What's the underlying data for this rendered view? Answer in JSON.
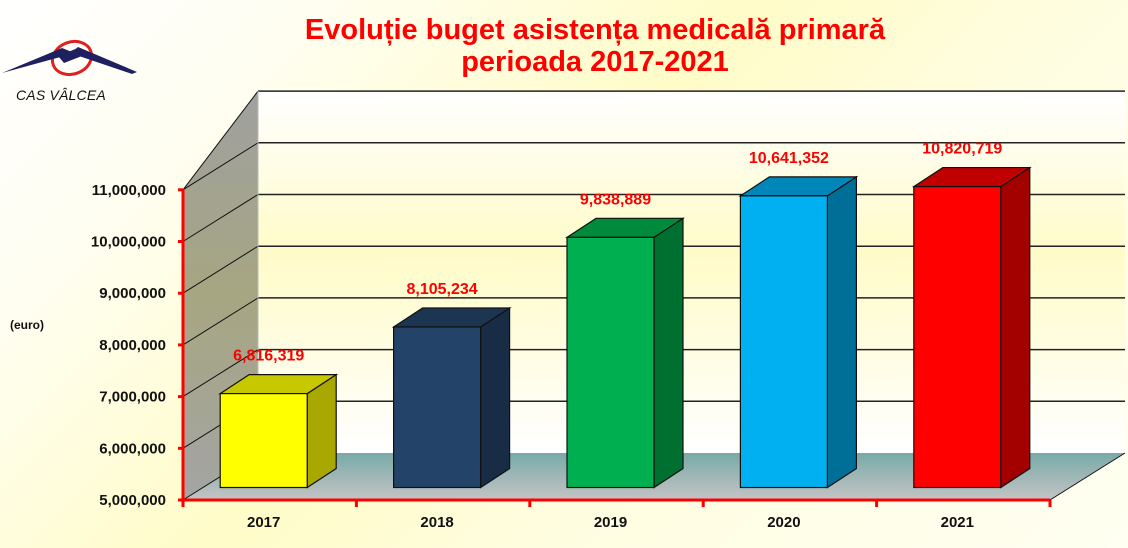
{
  "logo": {
    "icon": "cas-roof-swoosh-icon",
    "text": "CAS VÂLCEA"
  },
  "header": {
    "title_line1": "Evoluție buget asistența medicală primară",
    "title_line2": "perioada 2017-2021"
  },
  "chart_data": {
    "type": "bar",
    "style": "3d-column",
    "title": "Evoluție buget asistența medicală primară perioada 2017-2021",
    "xlabel": "",
    "ylabel": "(euro)",
    "categories": [
      "2017",
      "2018",
      "2019",
      "2020",
      "2021"
    ],
    "values": [
      6816319,
      8105234,
      9838889,
      10641352,
      10820719
    ],
    "data_labels": [
      "6,816,319",
      "8,105,234",
      "9,838,889",
      "10,641,352",
      "10,820,719"
    ],
    "colors": [
      "#ffff00",
      "#234369",
      "#00b050",
      "#00b0f0",
      "#ff0000"
    ],
    "side_colors": [
      "#a8a800",
      "#182c45",
      "#007030",
      "#006f98",
      "#a30000"
    ],
    "top_colors": [
      "#c8c800",
      "#1c3550",
      "#008a3c",
      "#0086b8",
      "#c00000"
    ],
    "ylim": [
      5000000,
      11000000
    ],
    "yticks": [
      5000000,
      6000000,
      7000000,
      8000000,
      9000000,
      10000000,
      11000000
    ],
    "ytick_labels": [
      "5,000,000",
      "6,000,000",
      "7,000,000",
      "8,000,000",
      "9,000,000",
      "10,000,000",
      "11,000,000"
    ],
    "grid": true,
    "legend": "none",
    "axis_color": "#ff0000",
    "label_color": "#ff0000"
  }
}
